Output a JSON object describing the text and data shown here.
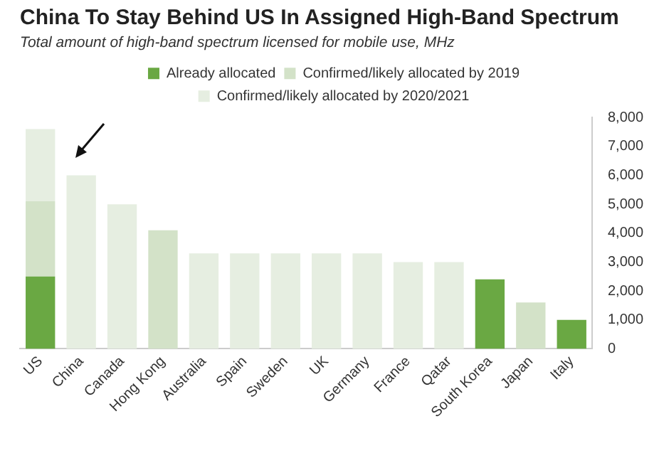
{
  "chart_data": {
    "type": "bar",
    "title": "China To Stay Behind US In Assigned High-Band Spectrum",
    "subtitle": "Total amount of high-band spectrum licensed for mobile use, MHz",
    "categories": [
      "US",
      "China",
      "Canada",
      "Hong Kong",
      "Australia",
      "Spain",
      "Sweden",
      "UK",
      "Germany",
      "France",
      "Qatar",
      "South Korea",
      "Japan",
      "Italy"
    ],
    "stacked": true,
    "series": [
      {
        "name": "Already allocated",
        "color": "#6aa843",
        "values": [
          2500,
          0,
          0,
          0,
          0,
          0,
          0,
          0,
          0,
          0,
          0,
          2400,
          0,
          1000
        ]
      },
      {
        "name": "Confirmed/likely allocated by 2019",
        "color": "#d3e2c8",
        "values": [
          2600,
          0,
          0,
          4100,
          0,
          0,
          0,
          0,
          0,
          0,
          0,
          0,
          1600,
          0
        ]
      },
      {
        "name": "Confirmed/likely allocated by 2020/2021",
        "color": "#e6eee1",
        "values": [
          2500,
          6000,
          5000,
          0,
          3300,
          3300,
          3300,
          3300,
          3300,
          3000,
          3000,
          0,
          0,
          0
        ]
      }
    ],
    "ylim": [
      0,
      8000
    ],
    "yticks": [
      {
        "value": 0,
        "label": "0"
      },
      {
        "value": 1000,
        "label": "1,000"
      },
      {
        "value": 2000,
        "label": "2,000"
      },
      {
        "value": 3000,
        "label": "3,000"
      },
      {
        "value": 4000,
        "label": "4,000"
      },
      {
        "value": 5000,
        "label": "5,000"
      },
      {
        "value": 6000,
        "label": "6,000"
      },
      {
        "value": 7000,
        "label": "7,000"
      },
      {
        "value": 8000,
        "label": "8,000"
      }
    ],
    "grid": false,
    "legend": "top"
  }
}
